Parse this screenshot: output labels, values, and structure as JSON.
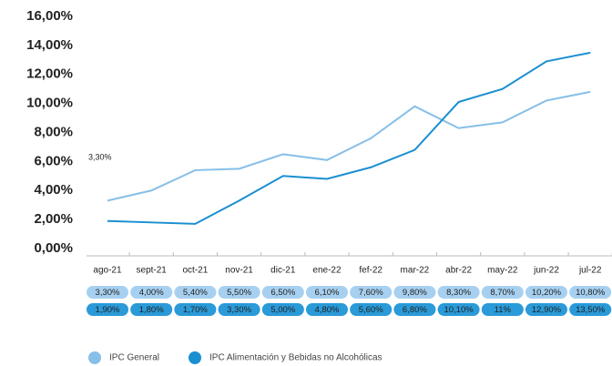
{
  "chart_data": {
    "type": "line",
    "categories": [
      "ago-21",
      "sept-21",
      "oct-21",
      "nov-21",
      "dic-21",
      "ene-22",
      "fef-22",
      "mar-22",
      "abr-22",
      "may-22",
      "jun-22",
      "jul-22"
    ],
    "series": [
      {
        "name": "IPC General",
        "color": "#86bfe8",
        "values": [
          3.3,
          4.0,
          5.4,
          5.5,
          6.5,
          6.1,
          7.6,
          9.8,
          8.3,
          8.7,
          10.2,
          10.8
        ],
        "value_labels": [
          "3,30%",
          "4,00%",
          "5,40%",
          "5,50%",
          "6,50%",
          "6,10%",
          "7,60%",
          "9,80%",
          "8,30%",
          "8,70%",
          "10,20%",
          "10,80%"
        ]
      },
      {
        "name": "IPC Alimentación y Bebidas no Alcohólicas",
        "color": "#1a8fd1",
        "values": [
          1.9,
          1.8,
          1.7,
          3.3,
          5.0,
          4.8,
          5.6,
          6.8,
          10.1,
          11,
          12.9,
          13.5
        ],
        "value_labels": [
          "1,90%",
          "1,80%",
          "1,70%",
          "3,30%",
          "5,00%",
          "4,80%",
          "5,60%",
          "6,80%",
          "10,10%",
          "11%",
          "12,90%",
          "13,50%"
        ]
      }
    ],
    "annotations": [
      "3,30%"
    ],
    "ylim": [
      0,
      16
    ],
    "yticks": [
      {
        "value": 0,
        "label": "0,00%"
      },
      {
        "value": 2,
        "label": "2,00%"
      },
      {
        "value": 4,
        "label": "4,00%"
      },
      {
        "value": 6,
        "label": "6,00%"
      },
      {
        "value": 8,
        "label": "8,00%"
      },
      {
        "value": 10,
        "label": "10,00%"
      },
      {
        "value": 12,
        "label": "12,00%"
      },
      {
        "value": 14,
        "label": "14,00%"
      },
      {
        "value": 16,
        "label": "16,00%"
      }
    ],
    "grid": false
  }
}
